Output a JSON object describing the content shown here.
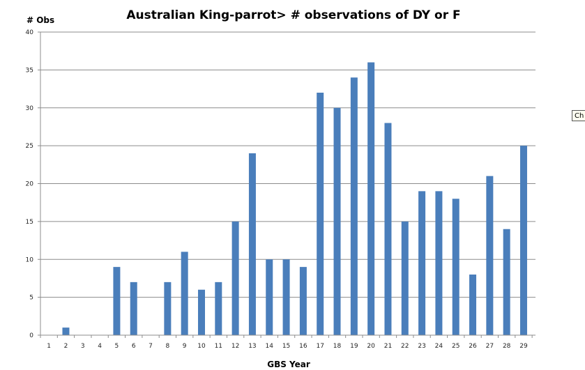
{
  "chart_data": {
    "type": "bar",
    "title": "Australian King-parrot> # observations of DY or F",
    "xlabel": "GBS Year",
    "ylabel": "# Obs",
    "categories": [
      "1",
      "2",
      "3",
      "4",
      "5",
      "6",
      "7",
      "8",
      "9",
      "10",
      "11",
      "12",
      "13",
      "14",
      "15",
      "16",
      "17",
      "18",
      "19",
      "20",
      "21",
      "22",
      "23",
      "24",
      "25",
      "26",
      "27",
      "28",
      "29"
    ],
    "values": [
      0,
      1,
      0,
      0,
      9,
      7,
      0,
      7,
      11,
      6,
      7,
      15,
      24,
      10,
      10,
      9,
      32,
      30,
      34,
      36,
      28,
      15,
      19,
      19,
      18,
      8,
      21,
      14,
      25
    ],
    "ylim": [
      0,
      40
    ],
    "yticks": [
      0,
      5,
      10,
      15,
      20,
      25,
      30,
      35,
      40
    ],
    "grid": true,
    "legend": "none",
    "bar_color": "#4a7ebb"
  },
  "edge_tab_label": "Ch"
}
